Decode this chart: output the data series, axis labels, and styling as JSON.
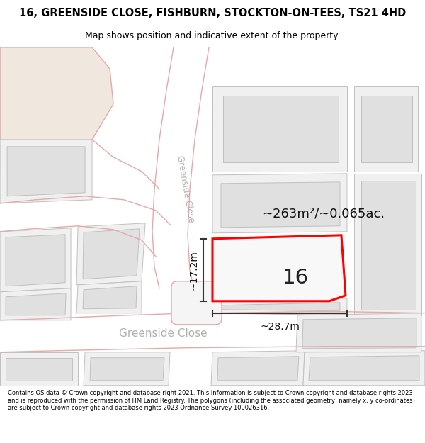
{
  "title_line1": "16, GREENSIDE CLOSE, FISHBURN, STOCKTON-ON-TEES, TS21 4HD",
  "title_line2": "Map shows position and indicative extent of the property.",
  "footer_text": "Contains OS data © Crown copyright and database right 2021. This information is subject to Crown copyright and database rights 2023 and is reproduced with the permission of HM Land Registry. The polygons (including the associated geometry, namely x, y co-ordinates) are subject to Crown copyright and database rights 2023 Ordnance Survey 100026316.",
  "map_bg": "#ffffff",
  "road_stroke": "#e8a8a8",
  "building_fill": "#e0e0e0",
  "building_stroke": "#c0c0c0",
  "area_label": "~263m²/~0.065ac.",
  "number_label": "16",
  "width_label": "~28.7m",
  "height_label": "~17.2m",
  "road_label_diag": "Greenside Close",
  "road_label_horiz": "Greenside Close",
  "beige_fill": "#f0e8df",
  "highlight_stroke": "#ff0000",
  "dim_color": "#333333"
}
